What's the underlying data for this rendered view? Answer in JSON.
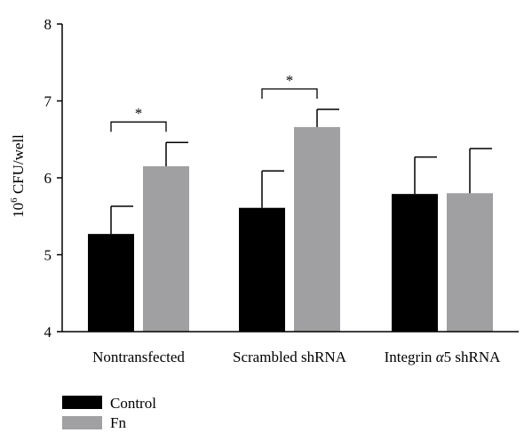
{
  "chart_data": {
    "type": "bar",
    "ylabel_base": "10",
    "ylabel_exp": "6",
    "ylabel_rest": " CFU/well",
    "ylim": [
      4,
      8
    ],
    "yticks": [
      "4",
      "5",
      "6",
      "7",
      "8"
    ],
    "categories": [
      {
        "label": "Nontransfected"
      },
      {
        "label": "Scrambled shRNA"
      },
      {
        "label_pre": "Integrin ",
        "label_greek": "α",
        "label_post": "5 shRNA"
      }
    ],
    "series": [
      {
        "name": "Control",
        "color": "#000000",
        "values": [
          5.27,
          5.61,
          5.79
        ],
        "errors": [
          0.36,
          0.48,
          0.48
        ]
      },
      {
        "name": "Fn",
        "color": "#a0a0a2",
        "values": [
          6.15,
          6.66,
          5.8
        ],
        "errors": [
          0.31,
          0.23,
          0.58
        ]
      }
    ],
    "significance": [
      {
        "category": 0,
        "label": "*"
      },
      {
        "category": 1,
        "label": "*"
      }
    ],
    "legend_position": "bottom-left",
    "grid": false
  }
}
